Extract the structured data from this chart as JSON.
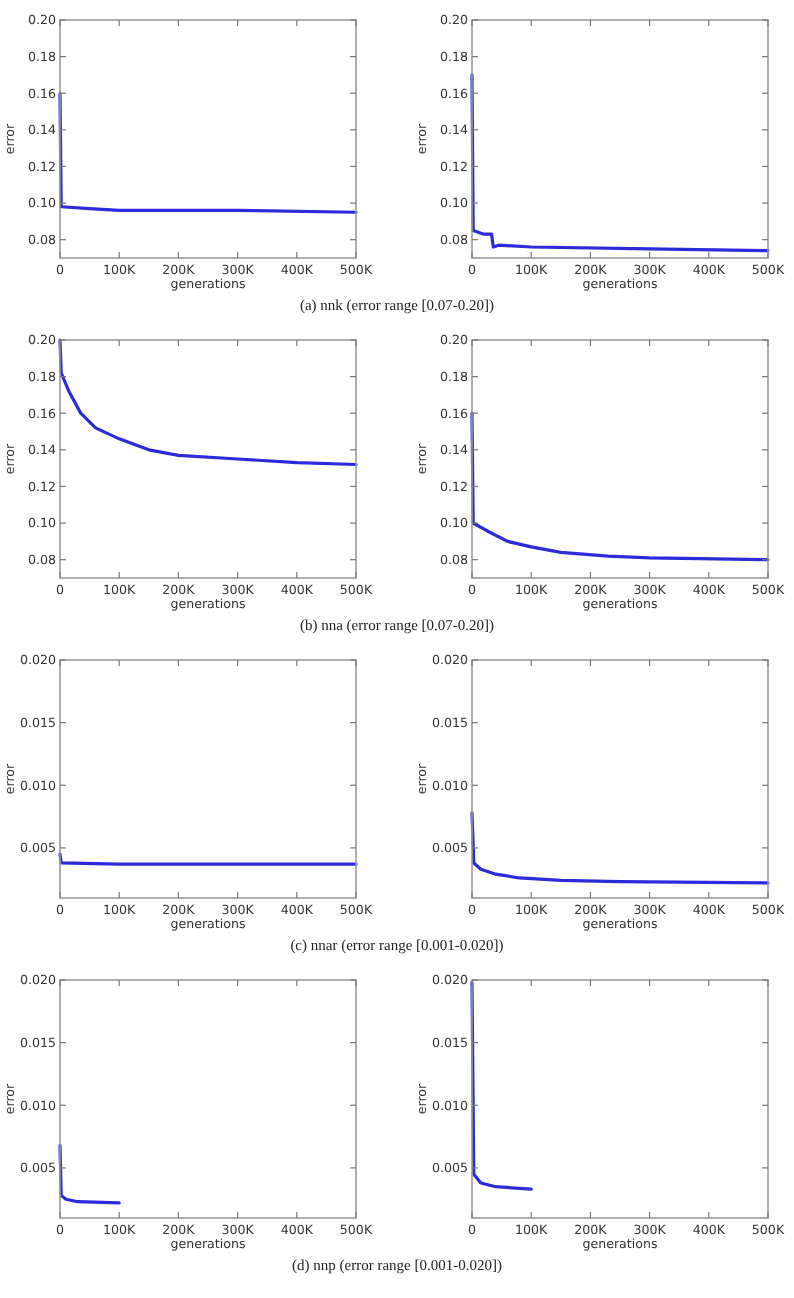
{
  "chart_data": [
    {
      "type": "line",
      "xlabel": "generations",
      "ylabel": "error",
      "annotations": [
        "(a) nnk (error range [0.07-0.20])"
      ],
      "xlim": [
        0,
        500000
      ],
      "xticks": [
        {
          "value": 0,
          "label": "0"
        },
        {
          "value": 100000,
          "label": "100K"
        },
        {
          "value": 200000,
          "label": "200K"
        },
        {
          "value": 300000,
          "label": "300K"
        },
        {
          "value": 400000,
          "label": "400K"
        },
        {
          "value": 500000,
          "label": "500K"
        }
      ],
      "ylim": [
        0.07,
        0.2
      ],
      "yticks": [
        0.08,
        {
          "value": 0.1,
          "label": "0.10"
        },
        0.12,
        0.14,
        0.16,
        0.18,
        {
          "value": 0.2,
          "label": "0.20"
        }
      ],
      "grid": false,
      "line_style": "solid",
      "series": [
        {
          "color": "#2b2bd9",
          "x": [
            0,
            2000,
            50000,
            100000,
            300000,
            500000
          ],
          "values": [
            0.16,
            0.098,
            0.097,
            0.096,
            0.096,
            0.095
          ]
        }
      ]
    },
    {
      "type": "line",
      "xlabel": "generations",
      "ylabel": "error",
      "xlim": [
        0,
        500000
      ],
      "xticks": [
        {
          "value": 0,
          "label": "0"
        },
        {
          "value": 100000,
          "label": "100K"
        },
        {
          "value": 200000,
          "label": "200K"
        },
        {
          "value": 300000,
          "label": "300K"
        },
        {
          "value": 400000,
          "label": "400K"
        },
        {
          "value": 500000,
          "label": "500K"
        }
      ],
      "ylim": [
        0.07,
        0.2
      ],
      "yticks": [
        0.08,
        {
          "value": 0.1,
          "label": "0.10"
        },
        0.12,
        0.14,
        0.16,
        0.18,
        {
          "value": 0.2,
          "label": "0.20"
        }
      ],
      "grid": false,
      "line_style": "solid",
      "series": [
        {
          "color": "#2b2bd9",
          "x": [
            0,
            2000,
            20000,
            33000,
            36000,
            45000,
            100000,
            300000,
            500000
          ],
          "values": [
            0.17,
            0.085,
            0.083,
            0.083,
            0.076,
            0.077,
            0.076,
            0.075,
            0.074
          ]
        }
      ]
    },
    {
      "type": "line",
      "xlabel": "generations",
      "ylabel": "error",
      "annotations": [
        "(b) nna (error range [0.07-0.20])"
      ],
      "xlim": [
        0,
        500000
      ],
      "xticks": [
        {
          "value": 0,
          "label": "0"
        },
        {
          "value": 100000,
          "label": "100K"
        },
        {
          "value": 200000,
          "label": "200K"
        },
        {
          "value": 300000,
          "label": "300K"
        },
        {
          "value": 400000,
          "label": "400K"
        },
        {
          "value": 500000,
          "label": "500K"
        }
      ],
      "ylim": [
        0.07,
        0.2
      ],
      "yticks": [
        0.08,
        {
          "value": 0.1,
          "label": "0.10"
        },
        0.12,
        0.14,
        0.16,
        0.18,
        {
          "value": 0.2,
          "label": "0.20"
        }
      ],
      "grid": false,
      "line_style": "solid",
      "series": [
        {
          "color": "#2b2bd9",
          "x": [
            0,
            2000,
            15000,
            35000,
            60000,
            100000,
            150000,
            200000,
            300000,
            400000,
            500000
          ],
          "values": [
            0.2,
            0.182,
            0.172,
            0.16,
            0.152,
            0.146,
            0.14,
            0.137,
            0.135,
            0.133,
            0.132
          ]
        }
      ]
    },
    {
      "type": "line",
      "xlabel": "generations",
      "ylabel": "error",
      "xlim": [
        0,
        500000
      ],
      "xticks": [
        {
          "value": 0,
          "label": "0"
        },
        {
          "value": 100000,
          "label": "100K"
        },
        {
          "value": 200000,
          "label": "200K"
        },
        {
          "value": 300000,
          "label": "300K"
        },
        {
          "value": 400000,
          "label": "400K"
        },
        {
          "value": 500000,
          "label": "500K"
        }
      ],
      "ylim": [
        0.07,
        0.2
      ],
      "yticks": [
        0.08,
        {
          "value": 0.1,
          "label": "0.10"
        },
        0.12,
        0.14,
        0.16,
        0.18,
        {
          "value": 0.2,
          "label": "0.20"
        }
      ],
      "grid": false,
      "line_style": "solid",
      "series": [
        {
          "color": "#2b2bd9",
          "x": [
            0,
            2000,
            30000,
            60000,
            100000,
            150000,
            230000,
            300000,
            500000
          ],
          "values": [
            0.16,
            0.1,
            0.095,
            0.09,
            0.087,
            0.084,
            0.082,
            0.081,
            0.08
          ]
        }
      ]
    },
    {
      "type": "line",
      "xlabel": "generations",
      "ylabel": "error",
      "annotations": [
        "(c) nnar (error range [0.001-0.020])"
      ],
      "xlim": [
        0,
        500000
      ],
      "xticks": [
        {
          "value": 0,
          "label": "0"
        },
        {
          "value": 100000,
          "label": "100K"
        },
        {
          "value": 200000,
          "label": "200K"
        },
        {
          "value": 300000,
          "label": "300K"
        },
        {
          "value": 400000,
          "label": "400K"
        },
        {
          "value": 500000,
          "label": "500K"
        }
      ],
      "ylim": [
        0.001,
        0.02
      ],
      "yticks": [
        0.005,
        {
          "value": 0.01,
          "label": "0.010"
        },
        0.015,
        {
          "value": 0.02,
          "label": "0.020"
        }
      ],
      "grid": false,
      "line_style": "solid",
      "series": [
        {
          "color": "#2b2bd9",
          "x": [
            0,
            2000,
            100000,
            500000
          ],
          "values": [
            0.0045,
            0.0038,
            0.0037,
            0.0037
          ]
        }
      ]
    },
    {
      "type": "line",
      "xlabel": "generations",
      "ylabel": "error",
      "xlim": [
        0,
        500000
      ],
      "xticks": [
        {
          "value": 0,
          "label": "0"
        },
        {
          "value": 100000,
          "label": "100K"
        },
        {
          "value": 200000,
          "label": "200K"
        },
        {
          "value": 300000,
          "label": "300K"
        },
        {
          "value": 400000,
          "label": "400K"
        },
        {
          "value": 500000,
          "label": "500K"
        }
      ],
      "ylim": [
        0.001,
        0.02
      ],
      "yticks": [
        0.005,
        {
          "value": 0.01,
          "label": "0.010"
        },
        0.015,
        {
          "value": 0.02,
          "label": "0.020"
        }
      ],
      "grid": false,
      "line_style": "solid",
      "series": [
        {
          "color": "#2b2bd9",
          "x": [
            0,
            3000,
            15000,
            40000,
            80000,
            150000,
            250000,
            500000
          ],
          "values": [
            0.0078,
            0.0038,
            0.0033,
            0.0029,
            0.0026,
            0.0024,
            0.0023,
            0.0022
          ]
        }
      ]
    },
    {
      "type": "line",
      "xlabel": "generations",
      "ylabel": "error",
      "annotations": [
        "(d) nnp (error range [0.001-0.020])"
      ],
      "xlim": [
        0,
        500000
      ],
      "xticks": [
        {
          "value": 0,
          "label": "0"
        },
        {
          "value": 100000,
          "label": "100K"
        },
        {
          "value": 200000,
          "label": "200K"
        },
        {
          "value": 300000,
          "label": "300K"
        },
        {
          "value": 400000,
          "label": "400K"
        },
        {
          "value": 500000,
          "label": "500K"
        }
      ],
      "ylim": [
        0.001,
        0.02
      ],
      "yticks": [
        0.005,
        {
          "value": 0.01,
          "label": "0.010"
        },
        0.015,
        {
          "value": 0.02,
          "label": "0.020"
        }
      ],
      "grid": false,
      "line_style": "solid",
      "series": [
        {
          "color": "#2b2bd9",
          "x": [
            0,
            2000,
            10000,
            30000,
            100000
          ],
          "values": [
            0.0068,
            0.0028,
            0.0025,
            0.0023,
            0.0022
          ]
        }
      ]
    },
    {
      "type": "line",
      "xlabel": "generations",
      "ylabel": "error",
      "xlim": [
        0,
        500000
      ],
      "xticks": [
        {
          "value": 0,
          "label": "0"
        },
        {
          "value": 100000,
          "label": "100K"
        },
        {
          "value": 200000,
          "label": "200K"
        },
        {
          "value": 300000,
          "label": "300K"
        },
        {
          "value": 400000,
          "label": "400K"
        },
        {
          "value": 500000,
          "label": "500K"
        }
      ],
      "ylim": [
        0.001,
        0.02
      ],
      "yticks": [
        0.005,
        {
          "value": 0.01,
          "label": "0.010"
        },
        0.015,
        {
          "value": 0.02,
          "label": "0.020"
        }
      ],
      "grid": false,
      "line_style": "solid",
      "series": [
        {
          "color": "#2b2bd9",
          "x": [
            0,
            3000,
            15000,
            40000,
            100000
          ],
          "values": [
            0.0198,
            0.0045,
            0.0038,
            0.0035,
            0.0033
          ]
        }
      ]
    }
  ]
}
